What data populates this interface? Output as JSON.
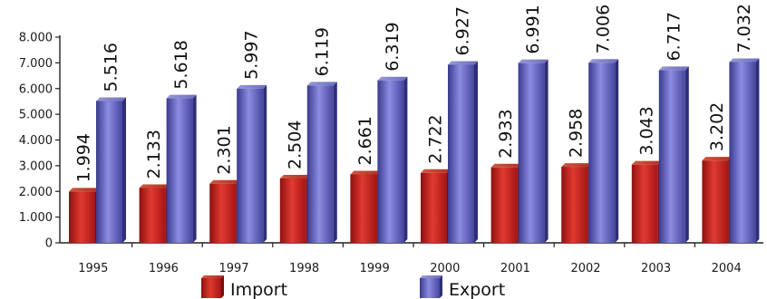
{
  "chart_data": {
    "type": "bar",
    "categories": [
      "1995",
      "1996",
      "1997",
      "1998",
      "1999",
      "2000",
      "2001",
      "2002",
      "2003",
      "2004"
    ],
    "series": [
      {
        "name": "Import",
        "values": [
          1994,
          2133,
          2301,
          2504,
          2661,
          2722,
          2933,
          2958,
          3043,
          3202
        ],
        "labels": [
          "1.994",
          "2.133",
          "2.301",
          "2.504",
          "2.661",
          "2.722",
          "2.933",
          "2.958",
          "3.043",
          "3.202"
        ],
        "color": "#c81e1e"
      },
      {
        "name": "Export",
        "values": [
          5516,
          5618,
          5997,
          6119,
          6319,
          6927,
          6991,
          7006,
          6717,
          7032
        ],
        "labels": [
          "5.516",
          "5.618",
          "5.997",
          "6.119",
          "6.319",
          "6.927",
          "6.991",
          "7.006",
          "6.717",
          "7.032"
        ],
        "color": "#5a5ab4"
      }
    ],
    "yticks": [
      {
        "value": 0,
        "label": "0"
      },
      {
        "value": 1000,
        "label": "1.000"
      },
      {
        "value": 2000,
        "label": "2.000"
      },
      {
        "value": 3000,
        "label": "3.000"
      },
      {
        "value": 4000,
        "label": "4.000"
      },
      {
        "value": 5000,
        "label": "5.000"
      },
      {
        "value": 6000,
        "label": "6.000"
      },
      {
        "value": 7000,
        "label": "7.000"
      },
      {
        "value": 8000,
        "label": "8.000"
      }
    ],
    "ylim": [
      0,
      8000
    ],
    "grid": false,
    "legend": "bottom",
    "title": "",
    "xlabel": "",
    "ylabel": ""
  }
}
